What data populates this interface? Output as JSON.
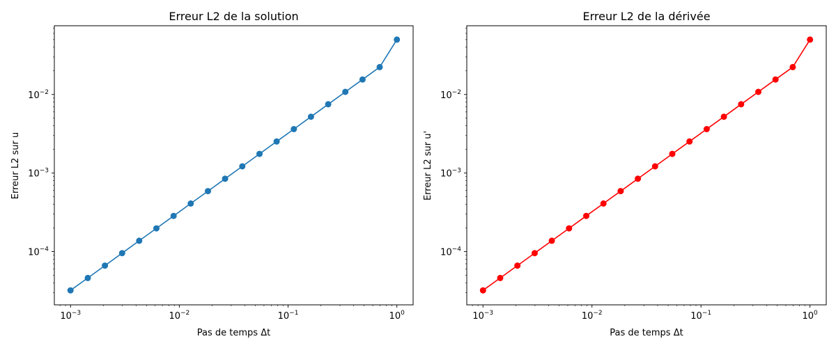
{
  "chart_data": [
    {
      "type": "line",
      "title": "Erreur L2 de la solution",
      "xlabel": "Pas de temps Δt",
      "ylabel": "Erreur L2 sur u",
      "xscale": "log",
      "yscale": "log",
      "xlim": [
        0.00071,
        1.41
      ],
      "ylim": [
        2.1e-05,
        0.075
      ],
      "x_ticks": [
        {
          "value": 0.001,
          "mantissa": "10",
          "exponent": "−3"
        },
        {
          "value": 0.01,
          "mantissa": "10",
          "exponent": "−2"
        },
        {
          "value": 0.1,
          "mantissa": "10",
          "exponent": "−1"
        },
        {
          "value": 1,
          "mantissa": "10",
          "exponent": "0"
        }
      ],
      "y_ticks": [
        {
          "value": 0.0001,
          "mantissa": "10",
          "exponent": "−4"
        },
        {
          "value": 0.001,
          "mantissa": "10",
          "exponent": "−3"
        },
        {
          "value": 0.01,
          "mantissa": "10",
          "exponent": "−2"
        }
      ],
      "grid": false,
      "series": [
        {
          "color": "#1f77b4",
          "marker": "circle",
          "x": [
            0.001,
            0.00144,
            0.00207,
            0.00298,
            0.00428,
            0.00616,
            0.00886,
            0.01274,
            0.01833,
            0.02637,
            0.03793,
            0.05456,
            0.07848,
            0.11288,
            0.16238,
            0.23357,
            0.33598,
            0.48329,
            0.69519,
            1.0
          ],
          "y": [
            3.21e-05,
            4.62e-05,
            6.64e-05,
            9.56e-05,
            0.0001375,
            0.0001977,
            0.0002845,
            0.0004092,
            0.0005886,
            0.000847,
            0.001218,
            0.001752,
            0.00252,
            0.003626,
            0.005216,
            0.007503,
            0.010793,
            0.015525,
            0.022332,
            0.05
          ]
        }
      ]
    },
    {
      "type": "line",
      "title": "Erreur L2 de la dérivée",
      "xlabel": "Pas de temps Δt",
      "ylabel": "Erreur L2 sur u'",
      "xscale": "log",
      "yscale": "log",
      "xlim": [
        0.00071,
        1.41
      ],
      "ylim": [
        2.1e-05,
        0.075
      ],
      "x_ticks": [
        {
          "value": 0.001,
          "mantissa": "10",
          "exponent": "−3"
        },
        {
          "value": 0.01,
          "mantissa": "10",
          "exponent": "−2"
        },
        {
          "value": 0.1,
          "mantissa": "10",
          "exponent": "−1"
        },
        {
          "value": 1,
          "mantissa": "10",
          "exponent": "0"
        }
      ],
      "y_ticks": [
        {
          "value": 0.0001,
          "mantissa": "10",
          "exponent": "−4"
        },
        {
          "value": 0.001,
          "mantissa": "10",
          "exponent": "−3"
        },
        {
          "value": 0.01,
          "mantissa": "10",
          "exponent": "−2"
        }
      ],
      "grid": false,
      "series": [
        {
          "color": "#ff0000",
          "marker": "circle",
          "x": [
            0.001,
            0.00144,
            0.00207,
            0.00298,
            0.00428,
            0.00616,
            0.00886,
            0.01274,
            0.01833,
            0.02637,
            0.03793,
            0.05456,
            0.07848,
            0.11288,
            0.16238,
            0.23357,
            0.33598,
            0.48329,
            0.69519,
            1.0
          ],
          "y": [
            3.21e-05,
            4.62e-05,
            6.64e-05,
            9.56e-05,
            0.0001375,
            0.0001977,
            0.0002845,
            0.0004092,
            0.0005886,
            0.000847,
            0.001218,
            0.001752,
            0.00252,
            0.003626,
            0.005216,
            0.007503,
            0.010793,
            0.015525,
            0.022332,
            0.05
          ]
        }
      ]
    }
  ]
}
